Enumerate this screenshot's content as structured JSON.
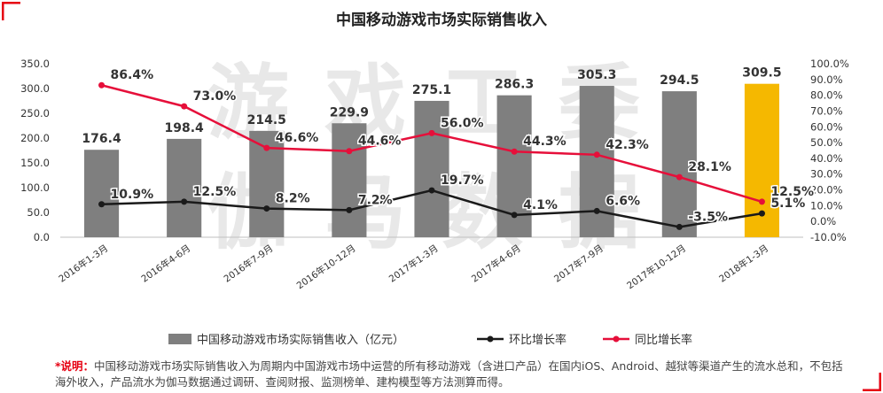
{
  "chart_data": {
    "type": "bar",
    "title": "中国移动游戏市场实际销售收入",
    "categories": [
      "2016年1-3月",
      "2016年4-6月",
      "2016年7-9月",
      "2016年10-12月",
      "2017年1-3月",
      "2017年4-6月",
      "2017年7-9月",
      "2017年10-12月",
      "2018年1-3月"
    ],
    "series": [
      {
        "name": "中国移动游戏市场实际销售收入（亿元）",
        "type": "bar",
        "axis": "left",
        "values": [
          176.4,
          198.4,
          214.5,
          229.9,
          275.1,
          286.3,
          305.3,
          294.5,
          309.5
        ],
        "labels": [
          "176.4",
          "198.4",
          "214.5",
          "229.9",
          "275.1",
          "286.3",
          "305.3",
          "294.5",
          "309.5"
        ]
      },
      {
        "name": "环比增长率",
        "type": "line",
        "axis": "right",
        "values": [
          10.9,
          12.5,
          8.2,
          7.2,
          19.7,
          4.1,
          6.6,
          -3.5,
          5.1
        ],
        "labels": [
          "10.9%",
          "12.5%",
          "8.2%",
          "7.2%",
          "19.7%",
          "4.1%",
          "6.6%",
          "-3.5%",
          "5.1%"
        ]
      },
      {
        "name": "同比增长率",
        "type": "line",
        "axis": "right",
        "values": [
          86.4,
          73.0,
          46.6,
          44.6,
          56.0,
          44.3,
          42.3,
          28.1,
          12.5
        ],
        "labels": [
          "86.4%",
          "73.0%",
          "46.6%",
          "44.6%",
          "56.0%",
          "44.3%",
          "42.3%",
          "28.1%",
          "12.5%"
        ]
      }
    ],
    "y_left": {
      "min": 0,
      "max": 350,
      "step": 50,
      "ticks": [
        "0.0",
        "50.0",
        "100.0",
        "150.0",
        "200.0",
        "250.0",
        "300.0",
        "350.0"
      ]
    },
    "y_right": {
      "min": -10,
      "max": 100,
      "step": 10,
      "ticks": [
        "-10.0%",
        "0.0%",
        "10.0%",
        "20.0%",
        "30.0%",
        "40.0%",
        "50.0%",
        "60.0%",
        "70.0%",
        "80.0%",
        "90.0%",
        "100.0%"
      ]
    },
    "grid": false,
    "legend_position": "bottom",
    "highlight_category_index": 8
  },
  "watermark": [
    "游戏工委",
    "伽马数据"
  ],
  "note": {
    "lead": "*说明：",
    "text": "中国移动游戏市场实际销售收入为周期内中国游戏市场中运营的所有移动游戏（含进口产品）在国内iOS、Android、越狱等渠道产生的流水总和，不包括海外收入，产品流水为伽马数据通过调研、查阅财报、监测榜单、建构模型等方法测算而得。"
  },
  "colors": {
    "bar": "#7f7f7f",
    "bar_highlight": "#f5b800",
    "ring_line": "#1a1a1a",
    "yoy_line": "#e60f3a",
    "corner": "#e60012",
    "watermark": "#000000"
  }
}
